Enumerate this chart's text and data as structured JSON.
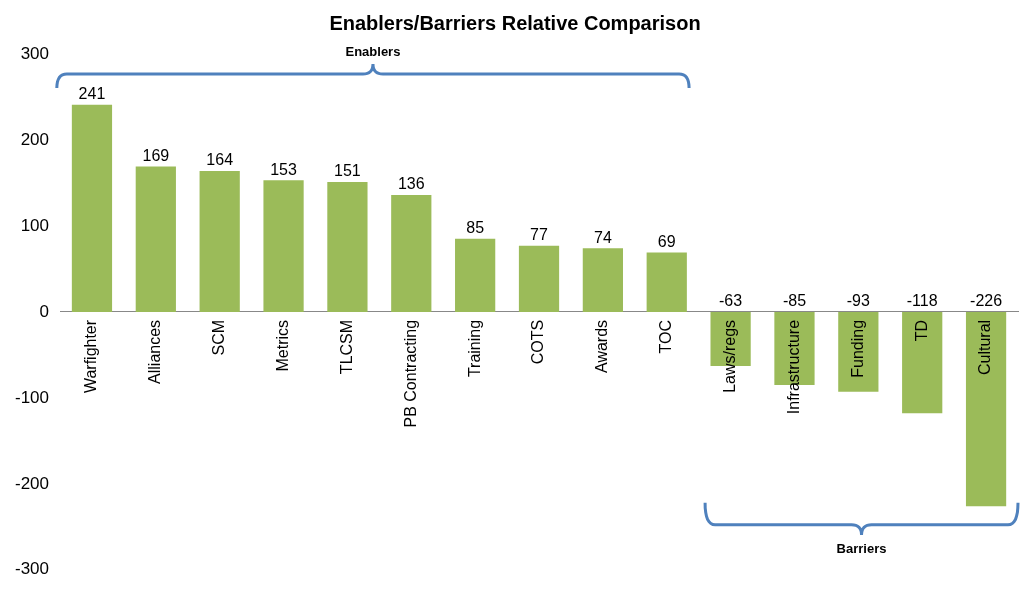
{
  "chart_data": {
    "type": "bar",
    "title": "Enablers/Barriers Relative Comparison",
    "categories": [
      "Warfighter",
      "Alliances",
      "SCM",
      "Metrics",
      "TLCSM",
      "PB Contracting",
      "Training",
      "COTS",
      "Awards",
      "TOC",
      "Laws/regs",
      "Infrastructure",
      "Funding",
      "TD",
      "Cultural"
    ],
    "values": [
      241,
      169,
      164,
      153,
      151,
      136,
      85,
      77,
      74,
      69,
      -63,
      -85,
      -93,
      -118,
      -226
    ],
    "color": "#9bbb59",
    "ylim": [
      -300,
      300
    ],
    "yticks": [
      -300,
      -200,
      -100,
      0,
      100,
      200,
      300
    ],
    "grid": false,
    "data_labels": true,
    "annotations": [
      "Enablers",
      "Barriers"
    ]
  }
}
